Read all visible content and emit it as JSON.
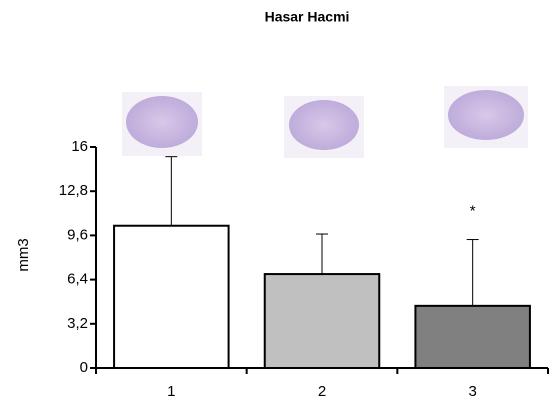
{
  "chart_data": {
    "type": "bar",
    "title": "Hasar Hacmi",
    "y_label": "mm3",
    "categories": [
      "1",
      "2",
      "3"
    ],
    "values": [
      10.3,
      6.8,
      4.5
    ],
    "errors": [
      5.0,
      2.9,
      4.8
    ],
    "colors": [
      "#ffffff",
      "#c0c0c0",
      "#808080"
    ],
    "ylim": [
      0,
      16
    ],
    "yticks": [
      0,
      {
        "value": 3.2,
        "label": "3,2"
      },
      {
        "value": 6.4,
        "label": "6,4"
      },
      {
        "value": 9.6,
        "label": "9,6"
      },
      {
        "value": 12.8,
        "label": "12,8"
      },
      16
    ],
    "annotations": [
      {
        "category": "3",
        "text": "*"
      }
    ]
  }
}
